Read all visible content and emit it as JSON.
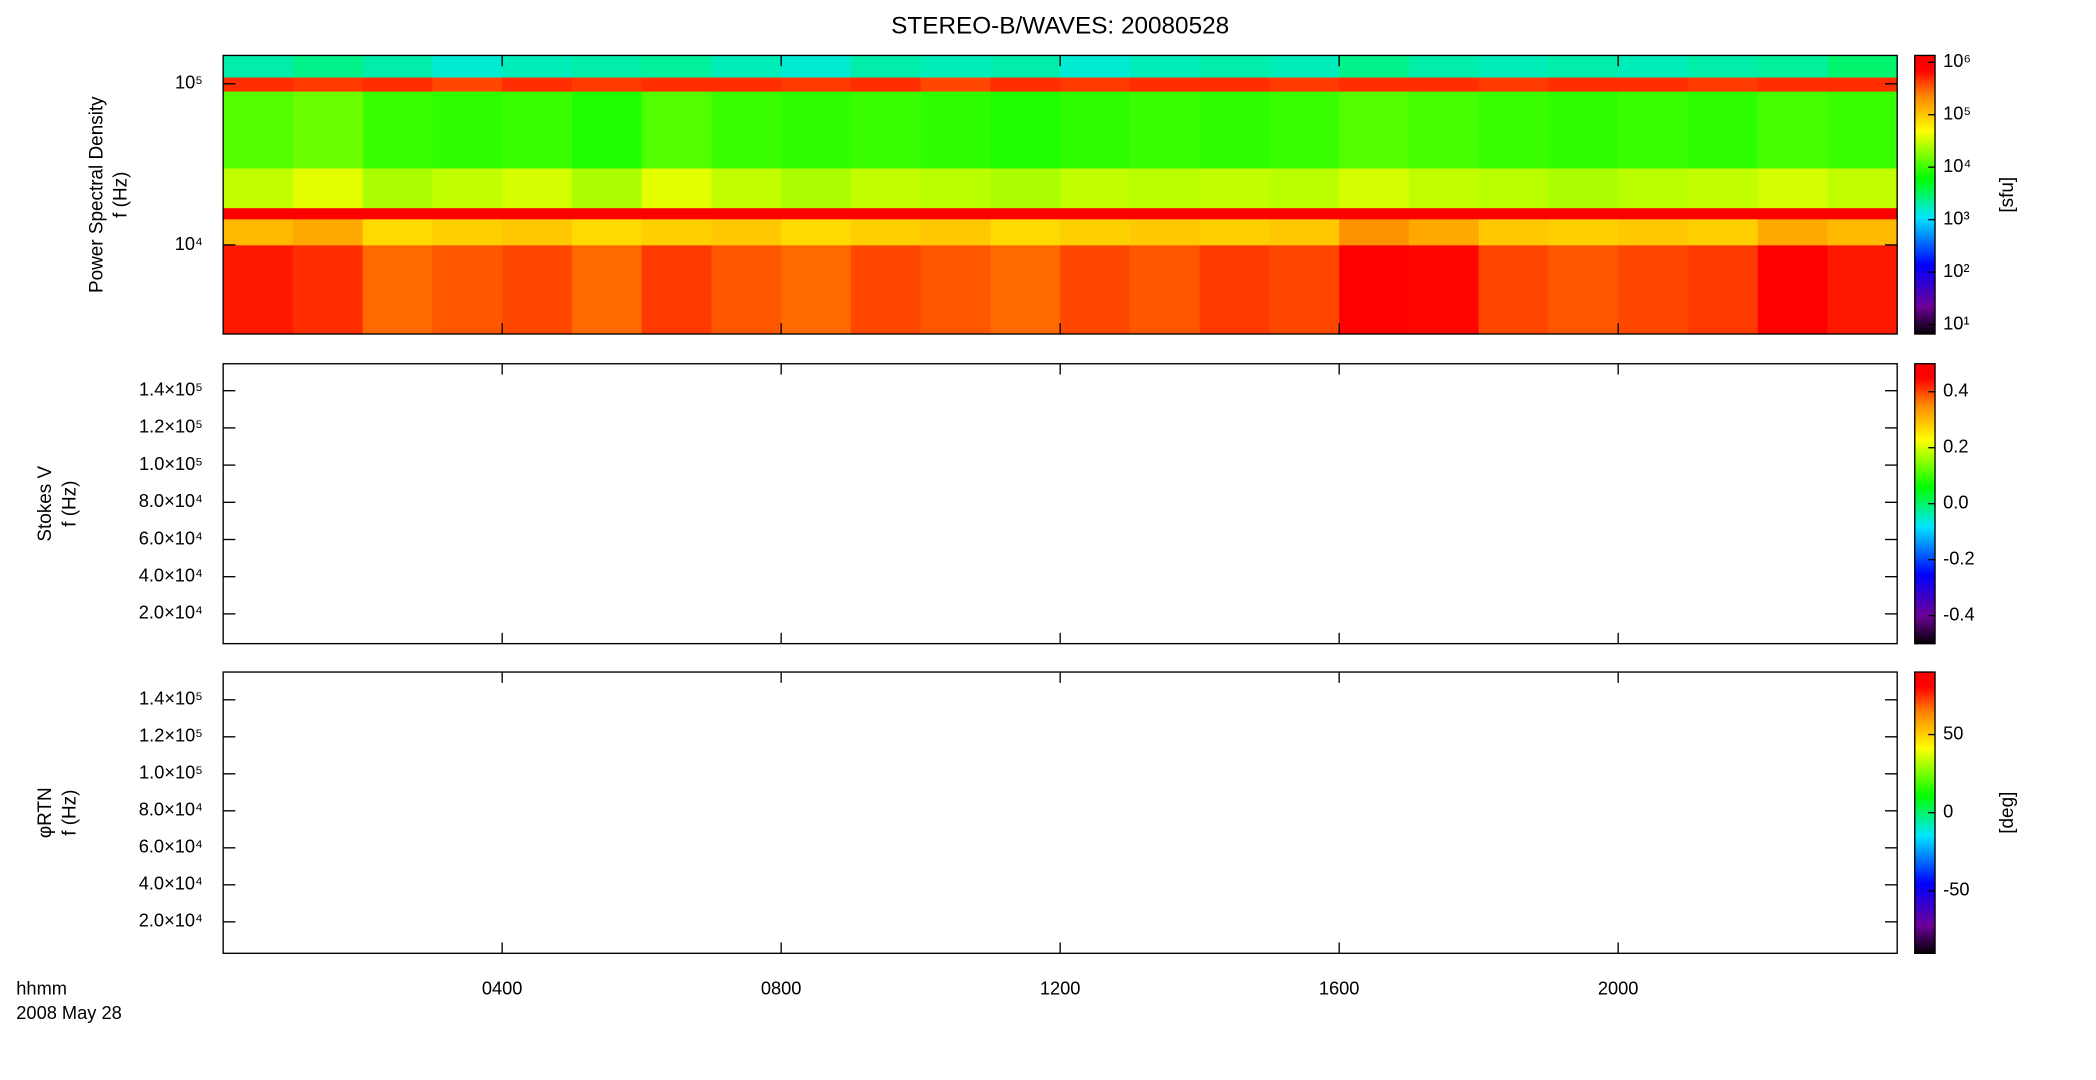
{
  "title": "STEREO-B/WAVES: 20080528",
  "x_caption": [
    "hhmm",
    "2008 May 28"
  ],
  "chart_data": [
    {
      "type": "heatmap",
      "colormap": "rainbow",
      "y_label": [
        "Power Spectral Density",
        "f (Hz)"
      ],
      "xlim": [
        0,
        24
      ],
      "xticks": [
        4,
        8,
        12,
        16,
        20
      ],
      "ylim": [
        2800,
        150000
      ],
      "ylog": true,
      "yticks": [
        {
          "value": 10000,
          "label": "10⁴"
        },
        {
          "value": 100000,
          "label": "10⁵"
        }
      ],
      "x_edges": [
        0,
        1,
        2,
        3,
        4,
        5,
        6,
        7,
        8,
        9,
        10,
        11,
        12,
        13,
        14,
        15,
        16,
        17,
        18,
        19,
        20,
        21,
        22,
        23,
        24
      ],
      "y_edges": [
        2800,
        10000,
        14500,
        17000,
        30000,
        90000,
        110000,
        150000
      ],
      "z": [
        [
          600000,
          500000,
          300000,
          350000,
          400000,
          300000,
          450000,
          350000,
          300000,
          400000,
          350000,
          300000,
          400000,
          350000,
          450000,
          400000,
          1000000,
          700000,
          400000,
          350000,
          400000,
          450000,
          900000,
          600000
        ],
        [
          120000,
          150000,
          80000,
          90000,
          100000,
          80000,
          90000,
          100000,
          80000,
          90000,
          100000,
          80000,
          90000,
          100000,
          90000,
          100000,
          200000,
          150000,
          100000,
          90000,
          100000,
          90000,
          150000,
          120000
        ],
        [
          800000,
          850000,
          800000,
          750000,
          800000,
          800000,
          850000,
          800000,
          750000,
          800000,
          800000,
          750000,
          800000,
          800000,
          750000,
          800000,
          850000,
          800000,
          800000,
          750000,
          800000,
          800000,
          850000,
          800000
        ],
        [
          30000,
          40000,
          25000,
          30000,
          35000,
          25000,
          40000,
          30000,
          25000,
          30000,
          28000,
          25000,
          30000,
          28000,
          30000,
          28000,
          35000,
          30000,
          28000,
          25000,
          28000,
          30000,
          35000,
          30000
        ],
        [
          12000,
          15000,
          10000,
          9000,
          10000,
          8000,
          12000,
          10000,
          9000,
          10000,
          9000,
          8000,
          9000,
          10000,
          9000,
          10000,
          12000,
          11000,
          10000,
          9000,
          10000,
          9000,
          11000,
          10000
        ],
        [
          500000,
          450000,
          500000,
          400000,
          500000,
          450000,
          500000,
          500000,
          450000,
          500000,
          400000,
          500000,
          450000,
          500000,
          500000,
          450000,
          500000,
          500000,
          450000,
          500000,
          500000,
          450000,
          500000,
          500000
        ],
        [
          2000,
          2500,
          2000,
          1500,
          1800,
          2000,
          2200,
          1800,
          1500,
          2000,
          1800,
          2000,
          1500,
          1800,
          2000,
          1800,
          2500,
          2000,
          1800,
          2000,
          1800,
          2000,
          2200,
          3000
        ]
      ],
      "zlim": [
        6.6,
        1350000
      ],
      "zlog": true,
      "zticks": [
        {
          "value": 10,
          "label": "10¹"
        },
        {
          "value": 100,
          "label": "10²"
        },
        {
          "value": 1000,
          "label": "10³"
        },
        {
          "value": 10000,
          "label": "10⁴"
        },
        {
          "value": 100000,
          "label": "10⁵"
        },
        {
          "value": 1000000,
          "label": "10⁶"
        }
      ],
      "colorbar_label": "[sfu]"
    },
    {
      "type": "heatmap",
      "colormap": "rainbow",
      "y_label": [
        "Stokes V",
        "f (Hz)"
      ],
      "xlim": [
        0,
        24
      ],
      "xticks": [
        4,
        8,
        12,
        16,
        20
      ],
      "ylim": [
        4000,
        154500
      ],
      "yticks": [
        {
          "value": 20000,
          "label": "2.0×10⁴"
        },
        {
          "value": 40000,
          "label": "4.0×10⁴"
        },
        {
          "value": 60000,
          "label": "6.0×10⁴"
        },
        {
          "value": 80000,
          "label": "8.0×10⁴"
        },
        {
          "value": 100000,
          "label": "1.0×10⁵"
        },
        {
          "value": 120000,
          "label": "1.2×10⁵"
        },
        {
          "value": 140000,
          "label": "1.4×10⁵"
        }
      ],
      "zlim": [
        -0.5,
        0.5
      ],
      "zticks": [
        -0.4,
        -0.2,
        {
          "value": 0,
          "label": "0.0"
        },
        0.2,
        0.4
      ]
    },
    {
      "type": "heatmap",
      "colormap": "rainbow",
      "y_label": [
        "φRTN",
        "f (Hz)"
      ],
      "xlim": [
        0,
        24
      ],
      "xticks": [
        {
          "value": 4,
          "label": "0400"
        },
        {
          "value": 8,
          "label": "0800"
        },
        {
          "value": 12,
          "label": "1200"
        },
        {
          "value": 16,
          "label": "1600"
        },
        {
          "value": 20,
          "label": "2000"
        }
      ],
      "ylim": [
        3000,
        155000
      ],
      "yticks": [
        {
          "value": 20000,
          "label": "2.0×10⁴"
        },
        {
          "value": 40000,
          "label": "4.0×10⁴"
        },
        {
          "value": 60000,
          "label": "6.0×10⁴"
        },
        {
          "value": 80000,
          "label": "8.0×10⁴"
        },
        {
          "value": 100000,
          "label": "1.0×10⁵"
        },
        {
          "value": 120000,
          "label": "1.2×10⁵"
        },
        {
          "value": 140000,
          "label": "1.4×10⁵"
        }
      ],
      "zlim": [
        -90,
        90
      ],
      "zticks": [
        -50,
        0,
        50
      ],
      "colorbar_label": "[deg]"
    }
  ]
}
